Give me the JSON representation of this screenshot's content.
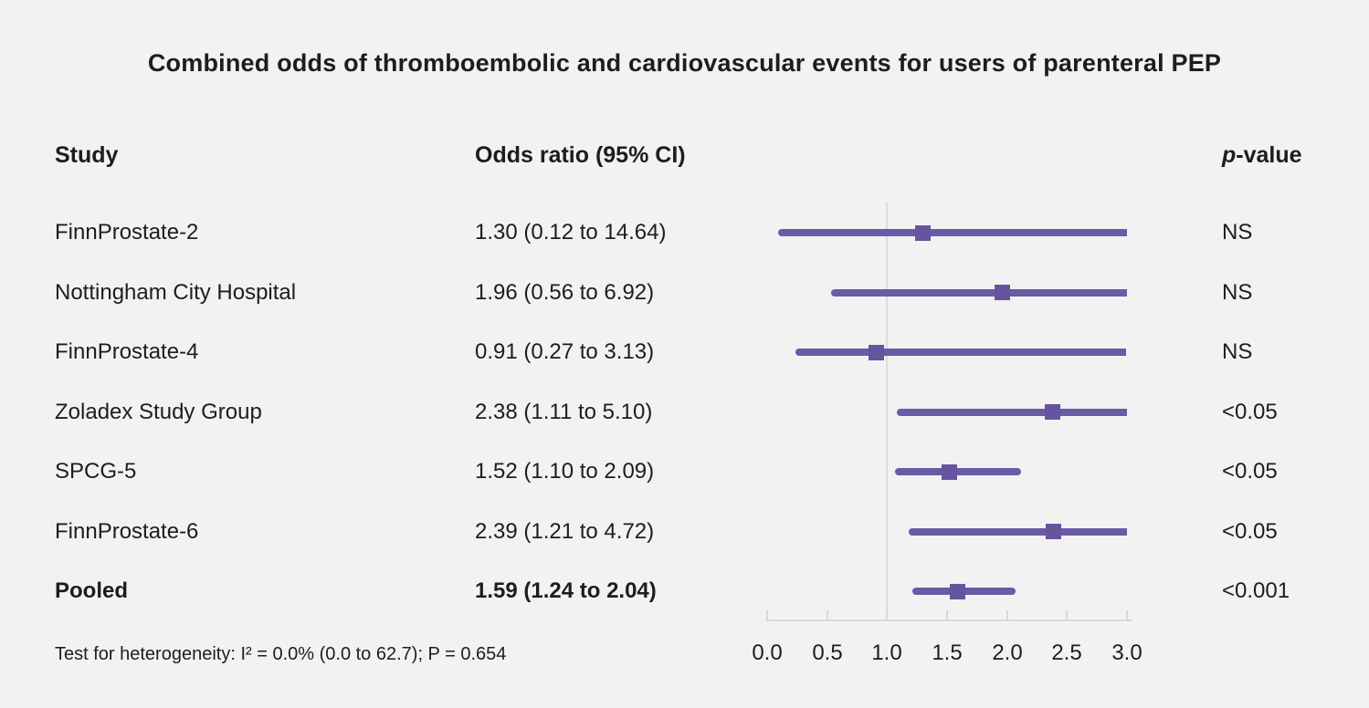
{
  "page": {
    "title": "Combined odds of thromboembolic and cardiovascular events for users of parenteral PEP",
    "background": "#f2f2f2"
  },
  "columns": {
    "study": "Study",
    "odds_ratio": "Odds ratio (95% CI)",
    "p_italic": "p",
    "p_suffix": "-value"
  },
  "footnote": "Test for heterogeneity: I² = 0.0% (0.0 to 62.7); P = 0.654",
  "colors": {
    "accent_purple": "#6b5aa6",
    "marker_purple": "#66549f",
    "axis_gray": "#d5d9dd",
    "refline_gray": "#d9dce0",
    "text": "#1d1d1b"
  },
  "chart_data": {
    "type": "forest",
    "title": "Combined odds of thromboembolic and cardiovascular events for users of parenteral PEP",
    "xlim": [
      0.0,
      3.0
    ],
    "x_ticks": [
      0.0,
      0.5,
      1.0,
      1.5,
      2.0,
      2.5,
      3.0
    ],
    "reference_line_x": 1.0,
    "grid": false,
    "rows": [
      {
        "study": "FinnProstate-2",
        "or_label": "1.30 (0.12 to 14.64)",
        "or": 1.3,
        "ci_low": 0.12,
        "ci_high": 14.64,
        "p_value": "NS",
        "bold": false
      },
      {
        "study": "Nottingham City Hospital",
        "or_label": "1.96 (0.56 to 6.92)",
        "or": 1.96,
        "ci_low": 0.56,
        "ci_high": 6.92,
        "p_value": "NS",
        "bold": false
      },
      {
        "study": "FinnProstate-4",
        "or_label": "0.91 (0.27 to 3.13)",
        "or": 0.91,
        "ci_low": 0.27,
        "ci_high": 3.13,
        "p_value": "NS",
        "bold": false
      },
      {
        "study": "Zoladex Study Group",
        "or_label": "2.38 (1.11 to 5.10)",
        "or": 2.38,
        "ci_low": 1.11,
        "ci_high": 5.1,
        "p_value": "<0.05",
        "bold": false
      },
      {
        "study": "SPCG-5",
        "or_label": "1.52 (1.10 to 2.09)",
        "or": 1.52,
        "ci_low": 1.1,
        "ci_high": 2.09,
        "p_value": "<0.05",
        "bold": false
      },
      {
        "study": "FinnProstate-6",
        "or_label": "2.39 (1.21 to 4.72)",
        "or": 2.39,
        "ci_low": 1.21,
        "ci_high": 4.72,
        "p_value": "<0.05",
        "bold": false
      },
      {
        "study": "Pooled",
        "or_label": "1.59 (1.24 to 2.04)",
        "or": 1.59,
        "ci_low": 1.24,
        "ci_high": 2.04,
        "p_value": "<0.001",
        "bold": true
      }
    ]
  }
}
